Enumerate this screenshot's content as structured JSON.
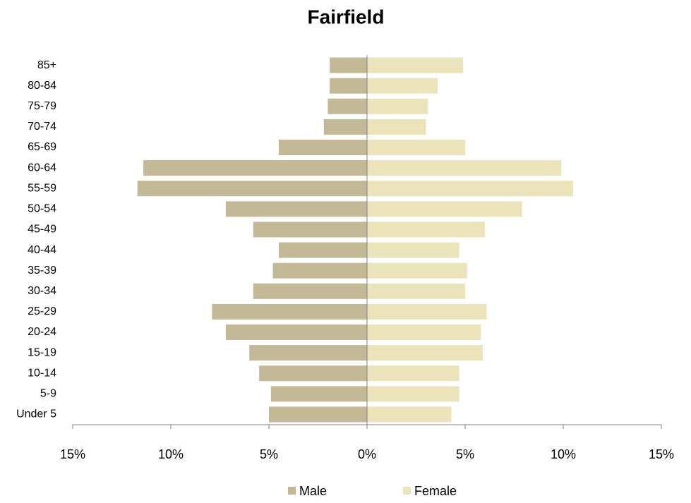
{
  "chart_data": {
    "type": "bar",
    "title": "Fairfield",
    "categories": [
      "Under 5",
      "5-9",
      "10-14",
      "15-19",
      "20-24",
      "25-29",
      "30-34",
      "35-39",
      "40-44",
      "45-49",
      "50-54",
      "55-59",
      "60-64",
      "65-69",
      "70-74",
      "75-79",
      "80-84",
      "85+"
    ],
    "series": [
      {
        "name": "Male",
        "color": "#c4b996",
        "values": [
          -5.0,
          -4.9,
          -5.5,
          -6.0,
          -7.2,
          -7.9,
          -5.8,
          -4.8,
          -4.5,
          -5.8,
          -7.2,
          -11.7,
          -11.4,
          -4.5,
          -2.2,
          -2.0,
          -1.9,
          -1.9
        ]
      },
      {
        "name": "Female",
        "color": "#ebe3b9",
        "values": [
          4.3,
          4.7,
          4.7,
          5.9,
          5.8,
          6.1,
          5.0,
          5.1,
          4.7,
          6.0,
          7.9,
          10.5,
          9.9,
          5.0,
          3.0,
          3.1,
          3.6,
          4.9
        ]
      }
    ],
    "xlim": [
      -15,
      15
    ],
    "xticks": [
      {
        "value": -15,
        "label": "15%"
      },
      {
        "value": -10,
        "label": "10%"
      },
      {
        "value": -5,
        "label": "5%"
      },
      {
        "value": 0,
        "label": "0%"
      },
      {
        "value": 5,
        "label": "5%"
      },
      {
        "value": 10,
        "label": "10%"
      },
      {
        "value": 15,
        "label": "15%"
      }
    ],
    "legend": "bottom"
  }
}
